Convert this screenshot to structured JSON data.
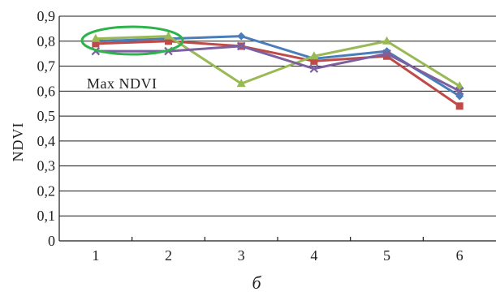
{
  "chart_data": {
    "type": "line",
    "title": "",
    "xlabel": "",
    "ylabel": "NDVI",
    "caption": "б",
    "x": [
      "1",
      "2",
      "3",
      "4",
      "5",
      "6"
    ],
    "y_ticks": [
      "0",
      "0,1",
      "0,2",
      "0,3",
      "0,4",
      "0,5",
      "0,6",
      "0,7",
      "0,8",
      "0,9"
    ],
    "ylim": [
      0,
      0.9
    ],
    "grid": "horizontal",
    "legend": "none",
    "annotation": {
      "text": "Max NDVI",
      "highlight_color": "#2db34a"
    },
    "series": [
      {
        "color": "#4a7ebb",
        "marker": "diamond",
        "values": [
          0.8,
          0.81,
          0.82,
          0.73,
          0.76,
          0.58
        ]
      },
      {
        "color": "#be4b48",
        "marker": "square",
        "values": [
          0.79,
          0.8,
          0.78,
          0.72,
          0.74,
          0.54
        ]
      },
      {
        "color": "#98b954",
        "marker": "triangle",
        "values": [
          0.81,
          0.82,
          0.63,
          0.74,
          0.8,
          0.62
        ]
      },
      {
        "color": "#7d60a0",
        "marker": "x",
        "values": [
          0.76,
          0.76,
          0.78,
          0.69,
          0.75,
          0.6
        ]
      }
    ]
  }
}
